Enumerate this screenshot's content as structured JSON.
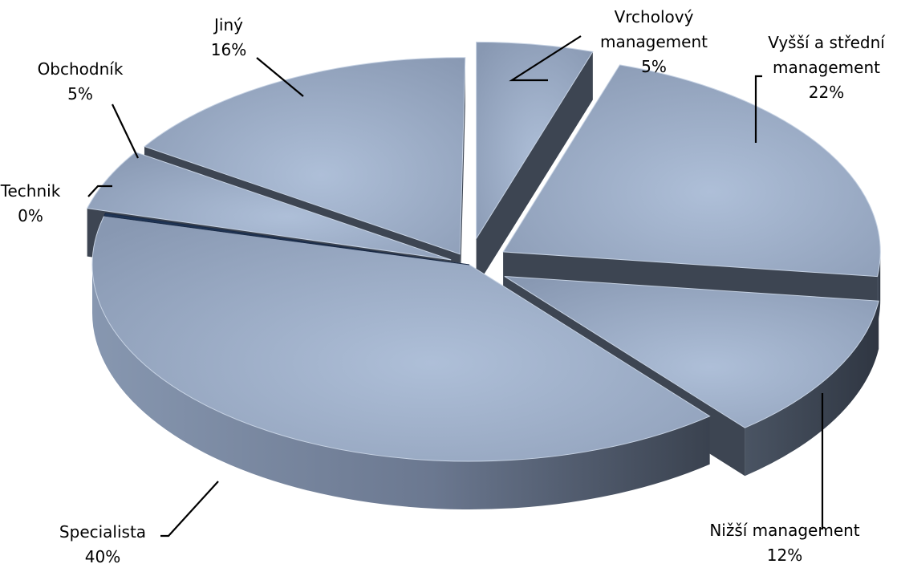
{
  "chart_data": {
    "type": "pie",
    "style": "3d-exploded",
    "slices": [
      {
        "name_lines": [
          "Vrcholový",
          "management"
        ],
        "value": 5,
        "value_label": "5%",
        "color": "#8ea0ba"
      },
      {
        "name_lines": [
          "Vyšší a střední",
          "management"
        ],
        "value": 22,
        "value_label": "22%",
        "color": "#97a9c3"
      },
      {
        "name_lines": [
          "Nižší management"
        ],
        "value": 12,
        "value_label": "12%",
        "color": "#93a5bf"
      },
      {
        "name_lines": [
          "Specialista"
        ],
        "value": 40,
        "value_label": "40%",
        "color": "#9aadc8"
      },
      {
        "name_lines": [
          "Technik"
        ],
        "value": 0,
        "value_label": "0%",
        "color": "#1f3556"
      },
      {
        "name_lines": [
          "Obchodník"
        ],
        "value": 5,
        "value_label": "5%",
        "color": "#95a8c2"
      },
      {
        "name_lines": [
          "Jiný"
        ],
        "value": 16,
        "value_label": "16%",
        "color": "#94a6c0"
      }
    ],
    "legend": "none",
    "data_labels": "outside-with-leader-lines"
  }
}
